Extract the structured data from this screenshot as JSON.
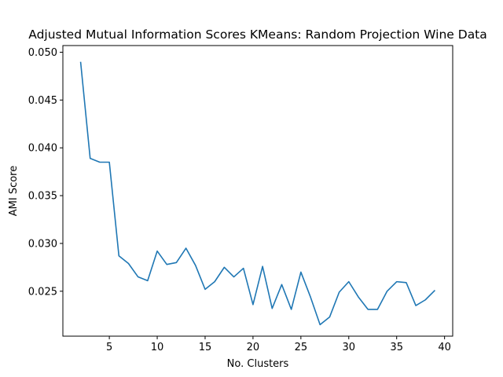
{
  "chart_data": {
    "type": "line",
    "title": "Adjusted Mutual Information Scores KMeans: Random Projection Wine Data",
    "xlabel": "No. Clusters",
    "ylabel": "AMI Score",
    "xlim": [
      0.15,
      40.85
    ],
    "ylim": [
      0.0203,
      0.0507
    ],
    "xticks": [
      5,
      10,
      15,
      20,
      25,
      30,
      35,
      40
    ],
    "yticks": [
      0.025,
      0.03,
      0.035,
      0.04,
      0.045,
      0.05
    ],
    "xtick_labels": [
      "5",
      "10",
      "15",
      "20",
      "25",
      "30",
      "35",
      "40"
    ],
    "ytick_labels": [
      "0.025",
      "0.030",
      "0.035",
      "0.040",
      "0.045",
      "0.050"
    ],
    "grid": false,
    "legend": "none",
    "line_color": "#1f77b4",
    "series": [
      {
        "x": [
          2,
          3,
          4,
          5,
          6,
          7,
          8,
          9,
          10,
          11,
          12,
          13,
          14,
          15,
          16,
          17,
          18,
          19,
          20,
          21,
          22,
          23,
          24,
          25,
          26,
          27,
          28,
          29,
          30,
          31,
          32,
          33,
          34,
          35,
          36,
          37,
          38,
          39
        ],
        "values": [
          0.049,
          0.0389,
          0.0385,
          0.0385,
          0.0287,
          0.0279,
          0.0265,
          0.0261,
          0.0292,
          0.0278,
          0.028,
          0.0295,
          0.0277,
          0.0252,
          0.026,
          0.0275,
          0.0265,
          0.0274,
          0.0236,
          0.0276,
          0.0232,
          0.0257,
          0.0231,
          0.027,
          0.0244,
          0.0215,
          0.0223,
          0.0249,
          0.026,
          0.0244,
          0.0231,
          0.0231,
          0.025,
          0.026,
          0.0259,
          0.0235,
          0.0241,
          0.0251
        ]
      }
    ]
  }
}
